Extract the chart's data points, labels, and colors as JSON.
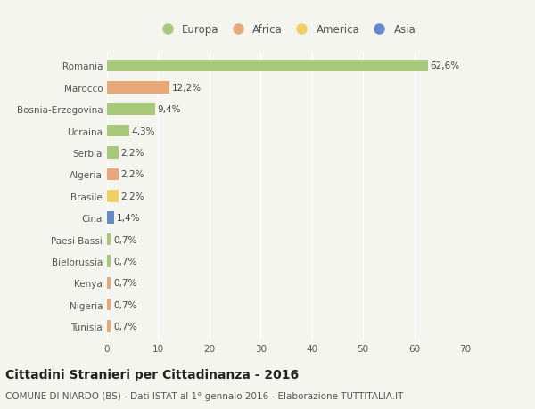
{
  "categories": [
    "Romania",
    "Marocco",
    "Bosnia-Erzegovina",
    "Ucraina",
    "Serbia",
    "Algeria",
    "Brasile",
    "Cina",
    "Paesi Bassi",
    "Bielorussia",
    "Kenya",
    "Nigeria",
    "Tunisia"
  ],
  "values": [
    62.6,
    12.2,
    9.4,
    4.3,
    2.2,
    2.2,
    2.2,
    1.4,
    0.7,
    0.7,
    0.7,
    0.7,
    0.7
  ],
  "labels": [
    "62,6%",
    "12,2%",
    "9,4%",
    "4,3%",
    "2,2%",
    "2,2%",
    "2,2%",
    "1,4%",
    "0,7%",
    "0,7%",
    "0,7%",
    "0,7%",
    "0,7%"
  ],
  "continents": [
    "Europa",
    "Africa",
    "Europa",
    "Europa",
    "Europa",
    "Africa",
    "America",
    "Asia",
    "Europa",
    "Europa",
    "Africa",
    "Africa",
    "Africa"
  ],
  "continent_colors": {
    "Europa": "#a8c87a",
    "Africa": "#e8a87a",
    "America": "#f0d060",
    "Asia": "#6688cc"
  },
  "legend_order": [
    "Europa",
    "Africa",
    "America",
    "Asia"
  ],
  "xlim": [
    0,
    70
  ],
  "xticks": [
    0,
    10,
    20,
    30,
    40,
    50,
    60,
    70
  ],
  "title": "Cittadini Stranieri per Cittadinanza - 2016",
  "subtitle": "COMUNE DI NIARDO (BS) - Dati ISTAT al 1° gennaio 2016 - Elaborazione TUTTITALIA.IT",
  "bg_color": "#f5f5f0",
  "bar_height": 0.55,
  "label_fontsize": 7.5,
  "tick_fontsize": 7.5,
  "title_fontsize": 10,
  "subtitle_fontsize": 7.5
}
